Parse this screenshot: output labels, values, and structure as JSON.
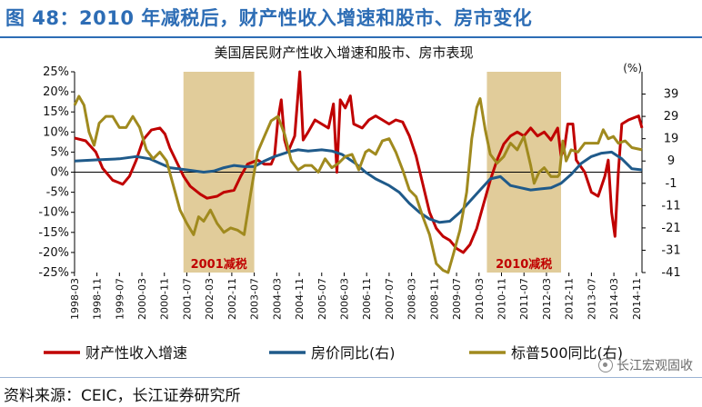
{
  "header": {
    "figure_title": "图 48：2010 年减税后，财产性收入增速和股市、房市变化"
  },
  "footer": {
    "source": "资料来源：CEIC，长江证券研究所",
    "watermark": "长江宏观固收"
  },
  "chart_data": {
    "type": "line",
    "title": "美国居民财产性收入增速和股市、房市表现",
    "left_axis": {
      "min": -25,
      "max": 25,
      "ticks": [
        -25,
        -20,
        -15,
        -10,
        -5,
        0,
        5,
        10,
        15,
        20,
        25
      ],
      "format": "percent"
    },
    "right_axis": {
      "unit": "(%)",
      "min": -41,
      "max": 49,
      "ticks": [
        -41,
        -31,
        -21,
        -11,
        -1,
        9,
        19,
        29,
        39
      ]
    },
    "x_range": [
      1998.17,
      2015.0
    ],
    "x_tick_labels": [
      "1998-03",
      "1998-11",
      "1999-07",
      "2000-03",
      "2000-11",
      "2001-07",
      "2002-03",
      "2002-11",
      "2003-07",
      "2004-03",
      "2004-11",
      "2005-07",
      "2006-03",
      "2006-11",
      "2007-07",
      "2008-03",
      "2008-11",
      "2009-07",
      "2010-03",
      "2010-11",
      "2011-07",
      "2012-03",
      "2012-11",
      "2013-07",
      "2014-03",
      "2014-11"
    ],
    "shaded_periods": [
      {
        "label": "2001减税",
        "start": 2001.4,
        "end": 2003.5
      },
      {
        "label": "2010减税",
        "start": 2010.4,
        "end": 2012.6
      }
    ],
    "series": [
      {
        "name": "财产性收入增速",
        "axis": "left",
        "color": "#c00000",
        "points": [
          [
            1998.17,
            8.5
          ],
          [
            1998.5,
            7.8
          ],
          [
            1998.8,
            5
          ],
          [
            1999.0,
            1
          ],
          [
            1999.3,
            -2
          ],
          [
            1999.6,
            -3
          ],
          [
            1999.8,
            -1
          ],
          [
            2000.0,
            3
          ],
          [
            2000.2,
            8
          ],
          [
            2000.45,
            10.5
          ],
          [
            2000.7,
            11
          ],
          [
            2000.85,
            9.5
          ],
          [
            2001.0,
            6
          ],
          [
            2001.2,
            2.5
          ],
          [
            2001.4,
            -1
          ],
          [
            2001.6,
            -3.5
          ],
          [
            2001.9,
            -5.5
          ],
          [
            2002.1,
            -6.5
          ],
          [
            2002.4,
            -6
          ],
          [
            2002.6,
            -5
          ],
          [
            2002.9,
            -4.5
          ],
          [
            2003.1,
            -1
          ],
          [
            2003.3,
            2
          ],
          [
            2003.6,
            3
          ],
          [
            2003.8,
            2
          ],
          [
            2004.0,
            2
          ],
          [
            2004.1,
            4
          ],
          [
            2004.2,
            13
          ],
          [
            2004.3,
            18
          ],
          [
            2004.4,
            8
          ],
          [
            2004.5,
            5
          ],
          [
            2004.7,
            9
          ],
          [
            2004.85,
            25
          ],
          [
            2004.95,
            8
          ],
          [
            2005.1,
            10
          ],
          [
            2005.3,
            13
          ],
          [
            2005.5,
            12
          ],
          [
            2005.7,
            11
          ],
          [
            2005.85,
            17
          ],
          [
            2005.95,
            0
          ],
          [
            2006.05,
            18
          ],
          [
            2006.2,
            16
          ],
          [
            2006.35,
            19
          ],
          [
            2006.45,
            12
          ],
          [
            2006.7,
            11
          ],
          [
            2006.9,
            13
          ],
          [
            2007.1,
            14
          ],
          [
            2007.3,
            13
          ],
          [
            2007.5,
            12
          ],
          [
            2007.7,
            13
          ],
          [
            2007.9,
            12.5
          ],
          [
            2008.1,
            9
          ],
          [
            2008.3,
            4
          ],
          [
            2008.5,
            -3
          ],
          [
            2008.7,
            -10
          ],
          [
            2008.9,
            -14
          ],
          [
            2009.1,
            -16
          ],
          [
            2009.3,
            -17
          ],
          [
            2009.5,
            -19
          ],
          [
            2009.7,
            -20
          ],
          [
            2009.9,
            -18
          ],
          [
            2010.1,
            -14
          ],
          [
            2010.3,
            -8
          ],
          [
            2010.5,
            -2
          ],
          [
            2010.7,
            3
          ],
          [
            2010.9,
            7
          ],
          [
            2011.1,
            9
          ],
          [
            2011.3,
            10
          ],
          [
            2011.5,
            9
          ],
          [
            2011.7,
            11
          ],
          [
            2011.9,
            9
          ],
          [
            2012.1,
            10
          ],
          [
            2012.3,
            8
          ],
          [
            2012.5,
            11
          ],
          [
            2012.6,
            4
          ],
          [
            2012.7,
            6
          ],
          [
            2012.8,
            12
          ],
          [
            2012.95,
            12
          ],
          [
            2013.05,
            3
          ],
          [
            2013.3,
            0
          ],
          [
            2013.5,
            -5
          ],
          [
            2013.7,
            -6
          ],
          [
            2013.9,
            -1
          ],
          [
            2014.0,
            3
          ],
          [
            2014.1,
            -10
          ],
          [
            2014.2,
            -16
          ],
          [
            2014.3,
            0
          ],
          [
            2014.4,
            12
          ],
          [
            2014.6,
            13
          ],
          [
            2014.9,
            14
          ],
          [
            2015.0,
            11
          ]
        ]
      },
      {
        "name": "房价同比(右)",
        "axis": "right",
        "color": "#1f5a8a",
        "points": [
          [
            1998.17,
            9
          ],
          [
            1998.8,
            9.5
          ],
          [
            1999.5,
            10
          ],
          [
            2000.0,
            11
          ],
          [
            2000.4,
            10
          ],
          [
            2000.7,
            8
          ],
          [
            2001.0,
            6
          ],
          [
            2001.5,
            5
          ],
          [
            2002.0,
            4
          ],
          [
            2002.3,
            4.5
          ],
          [
            2002.6,
            6
          ],
          [
            2002.9,
            7
          ],
          [
            2003.2,
            6.5
          ],
          [
            2003.5,
            6.5
          ],
          [
            2003.8,
            9
          ],
          [
            2004.1,
            11
          ],
          [
            2004.5,
            13
          ],
          [
            2004.8,
            14
          ],
          [
            2005.1,
            13.5
          ],
          [
            2005.5,
            14
          ],
          [
            2005.8,
            13.5
          ],
          [
            2006.1,
            12
          ],
          [
            2006.5,
            8
          ],
          [
            2006.8,
            4
          ],
          [
            2007.1,
            1
          ],
          [
            2007.5,
            -2
          ],
          [
            2007.8,
            -5
          ],
          [
            2008.1,
            -10
          ],
          [
            2008.4,
            -14
          ],
          [
            2008.7,
            -17
          ],
          [
            2009.0,
            -18.5
          ],
          [
            2009.3,
            -18
          ],
          [
            2009.6,
            -14
          ],
          [
            2009.9,
            -9
          ],
          [
            2010.2,
            -4
          ],
          [
            2010.5,
            1
          ],
          [
            2010.8,
            2
          ],
          [
            2011.1,
            -2
          ],
          [
            2011.4,
            -3
          ],
          [
            2011.7,
            -4
          ],
          [
            2012.0,
            -3.5
          ],
          [
            2012.3,
            -3
          ],
          [
            2012.6,
            -1
          ],
          [
            2012.9,
            3
          ],
          [
            2013.2,
            8
          ],
          [
            2013.5,
            11
          ],
          [
            2013.8,
            12.5
          ],
          [
            2014.1,
            13
          ],
          [
            2014.4,
            10
          ],
          [
            2014.7,
            5.5
          ],
          [
            2015.0,
            5
          ]
        ]
      },
      {
        "name": "标普500同比(右)",
        "axis": "right",
        "color": "#a08a1e",
        "points": [
          [
            1998.17,
            34
          ],
          [
            1998.3,
            38
          ],
          [
            1998.45,
            34
          ],
          [
            1998.6,
            22
          ],
          [
            1998.75,
            16
          ],
          [
            1998.9,
            26
          ],
          [
            1999.1,
            29
          ],
          [
            1999.3,
            29
          ],
          [
            1999.5,
            24
          ],
          [
            1999.7,
            24
          ],
          [
            1999.9,
            29
          ],
          [
            2000.1,
            24
          ],
          [
            2000.3,
            14
          ],
          [
            2000.5,
            10
          ],
          [
            2000.7,
            13
          ],
          [
            2000.9,
            9
          ],
          [
            2001.1,
            -2
          ],
          [
            2001.3,
            -13
          ],
          [
            2001.5,
            -19
          ],
          [
            2001.7,
            -24
          ],
          [
            2001.85,
            -16
          ],
          [
            2002.0,
            -18
          ],
          [
            2002.2,
            -13
          ],
          [
            2002.4,
            -19
          ],
          [
            2002.6,
            -23
          ],
          [
            2002.8,
            -21
          ],
          [
            2003.0,
            -22
          ],
          [
            2003.2,
            -24
          ],
          [
            2003.4,
            -5
          ],
          [
            2003.6,
            13
          ],
          [
            2003.8,
            20
          ],
          [
            2004.0,
            27
          ],
          [
            2004.2,
            29
          ],
          [
            2004.4,
            21
          ],
          [
            2004.6,
            9
          ],
          [
            2004.8,
            5
          ],
          [
            2005.0,
            7
          ],
          [
            2005.2,
            7
          ],
          [
            2005.4,
            4
          ],
          [
            2005.6,
            10
          ],
          [
            2005.8,
            6
          ],
          [
            2006.0,
            8
          ],
          [
            2006.2,
            11
          ],
          [
            2006.4,
            12
          ],
          [
            2006.6,
            5
          ],
          [
            2006.8,
            13
          ],
          [
            2006.9,
            14
          ],
          [
            2007.1,
            12
          ],
          [
            2007.3,
            18
          ],
          [
            2007.5,
            19
          ],
          [
            2007.7,
            13
          ],
          [
            2007.9,
            5
          ],
          [
            2008.1,
            -4
          ],
          [
            2008.3,
            -7
          ],
          [
            2008.5,
            -16
          ],
          [
            2008.7,
            -24
          ],
          [
            2008.9,
            -37
          ],
          [
            2009.1,
            -40
          ],
          [
            2009.25,
            -41
          ],
          [
            2009.4,
            -33
          ],
          [
            2009.6,
            -22
          ],
          [
            2009.8,
            -5
          ],
          [
            2009.95,
            19
          ],
          [
            2010.1,
            33
          ],
          [
            2010.2,
            37
          ],
          [
            2010.35,
            23
          ],
          [
            2010.5,
            12
          ],
          [
            2010.7,
            8
          ],
          [
            2010.9,
            11
          ],
          [
            2011.1,
            17
          ],
          [
            2011.3,
            14
          ],
          [
            2011.5,
            20
          ],
          [
            2011.7,
            7
          ],
          [
            2011.8,
            -1
          ],
          [
            2011.95,
            4
          ],
          [
            2012.1,
            6
          ],
          [
            2012.3,
            2
          ],
          [
            2012.5,
            2
          ],
          [
            2012.55,
            3
          ],
          [
            2012.65,
            18
          ],
          [
            2012.75,
            9
          ],
          [
            2012.9,
            14
          ],
          [
            2013.1,
            13
          ],
          [
            2013.3,
            17
          ],
          [
            2013.5,
            17
          ],
          [
            2013.7,
            17
          ],
          [
            2013.85,
            23
          ],
          [
            2014.0,
            19
          ],
          [
            2014.15,
            20
          ],
          [
            2014.3,
            17
          ],
          [
            2014.5,
            18
          ],
          [
            2014.7,
            15
          ],
          [
            2015.0,
            14
          ]
        ]
      }
    ],
    "legend": {
      "position": "bottom"
    }
  }
}
